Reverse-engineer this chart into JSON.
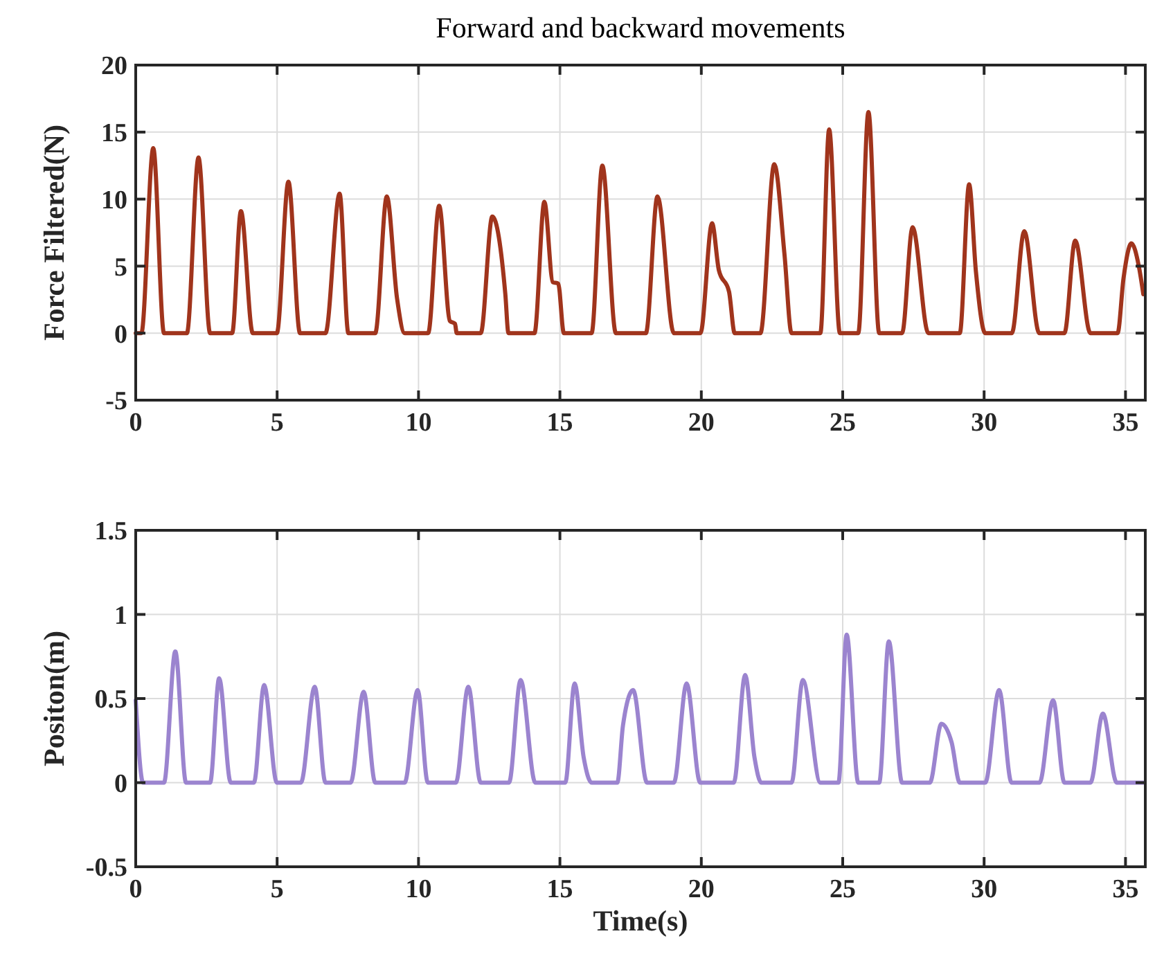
{
  "chart_data": [
    {
      "type": "line",
      "title": "Forward and backward movements",
      "ylabel": "Force Filtered(N)",
      "xlim": [
        0,
        35.7
      ],
      "xticks": [
        0,
        5,
        10,
        15,
        20,
        25,
        30,
        35
      ],
      "ylim": [
        -5,
        20
      ],
      "yticks": [
        -5,
        0,
        5,
        10,
        15,
        20
      ],
      "grid": true,
      "line_style": "solid",
      "marker": "none",
      "series": [
        {
          "color": "#a0341c",
          "x": [
            0,
            0.2,
            0.62,
            1.0,
            1.81,
            2.22,
            2.63,
            3.41,
            3.72,
            4.14,
            4.99,
            5.4,
            5.81,
            6.71,
            7.21,
            7.52,
            8.47,
            8.88,
            9.24,
            9.51,
            10.34,
            10.73,
            11.11,
            11.29,
            11.35,
            12.2,
            12.61,
            13.07,
            13.18,
            14.1,
            14.45,
            14.75,
            14.94,
            15.14,
            16.12,
            16.5,
            16.98,
            18.04,
            18.45,
            19.03,
            19.97,
            20.38,
            20.62,
            20.98,
            21.18,
            22.09,
            22.58,
            22.94,
            23.19,
            24.21,
            24.52,
            24.9,
            25.55,
            25.91,
            26.29,
            27.1,
            27.47,
            28.03,
            29.14,
            29.47,
            29.71,
            30.04,
            30.98,
            31.42,
            31.95,
            32.84,
            33.22,
            33.76,
            34.72,
            34.93,
            35.21,
            35.47,
            35.63
          ],
          "values": [
            0,
            0,
            13.8,
            0,
            0,
            13.1,
            0,
            0,
            9.1,
            0,
            0,
            11.3,
            0,
            0,
            10.4,
            0,
            0,
            10.2,
            2.6,
            0,
            0,
            9.5,
            0.9,
            0.7,
            0,
            0,
            8.7,
            2.9,
            0,
            0,
            9.8,
            3.8,
            3.7,
            0,
            0,
            12.5,
            0,
            0,
            10.2,
            0,
            0,
            8.2,
            4.7,
            3.1,
            0,
            0,
            12.6,
            5.9,
            0,
            0,
            15.2,
            0,
            0,
            16.5,
            0,
            0,
            7.9,
            0,
            0,
            11.1,
            4.6,
            0,
            0,
            7.6,
            0,
            0,
            6.9,
            0,
            0,
            4.1,
            6.7,
            5.0,
            2.9
          ]
        }
      ]
    },
    {
      "type": "line",
      "xlabel": "Time(s)",
      "ylabel": "Positon(m)",
      "xlim": [
        0,
        35.7
      ],
      "xticks": [
        0,
        5,
        10,
        15,
        20,
        25,
        30,
        35
      ],
      "ylim": [
        -0.5,
        1.5
      ],
      "yticks": [
        -0.5,
        0,
        0.5,
        1,
        1.5
      ],
      "grid": true,
      "line_style": "solid",
      "marker": "none",
      "series": [
        {
          "color": "#9b84cf",
          "x": [
            0,
            0.26,
            1.0,
            1.4,
            1.78,
            2.63,
            2.95,
            3.36,
            4.18,
            4.54,
            4.99,
            5.84,
            6.33,
            6.71,
            7.6,
            8.06,
            8.47,
            9.51,
            9.97,
            10.33,
            11.32,
            11.76,
            12.2,
            13.2,
            13.61,
            14.13,
            15.19,
            15.52,
            15.84,
            16.12,
            17.03,
            17.23,
            17.59,
            18.08,
            19.03,
            19.48,
            19.96,
            21.15,
            21.55,
            21.88,
            22.12,
            23.19,
            23.59,
            24.21,
            24.85,
            25.14,
            25.55,
            26.29,
            26.63,
            27.1,
            28.08,
            28.49,
            28.85,
            29.14,
            30.04,
            30.53,
            30.97,
            31.96,
            32.44,
            32.84,
            33.76,
            34.2,
            34.69,
            35.63
          ],
          "values": [
            0.49,
            0,
            0,
            0.78,
            0,
            0,
            0.62,
            0,
            0,
            0.58,
            0,
            0,
            0.57,
            0,
            0,
            0.54,
            0,
            0,
            0.55,
            0,
            0,
            0.57,
            0,
            0,
            0.61,
            0,
            0,
            0.59,
            0.15,
            0,
            0,
            0.34,
            0.55,
            0,
            0,
            0.59,
            0,
            0,
            0.64,
            0.15,
            0,
            0,
            0.61,
            0,
            0,
            0.88,
            0,
            0,
            0.84,
            0,
            0,
            0.35,
            0.24,
            0,
            0,
            0.55,
            0,
            0,
            0.49,
            0,
            0,
            0.41,
            0,
            0
          ]
        }
      ]
    }
  ]
}
